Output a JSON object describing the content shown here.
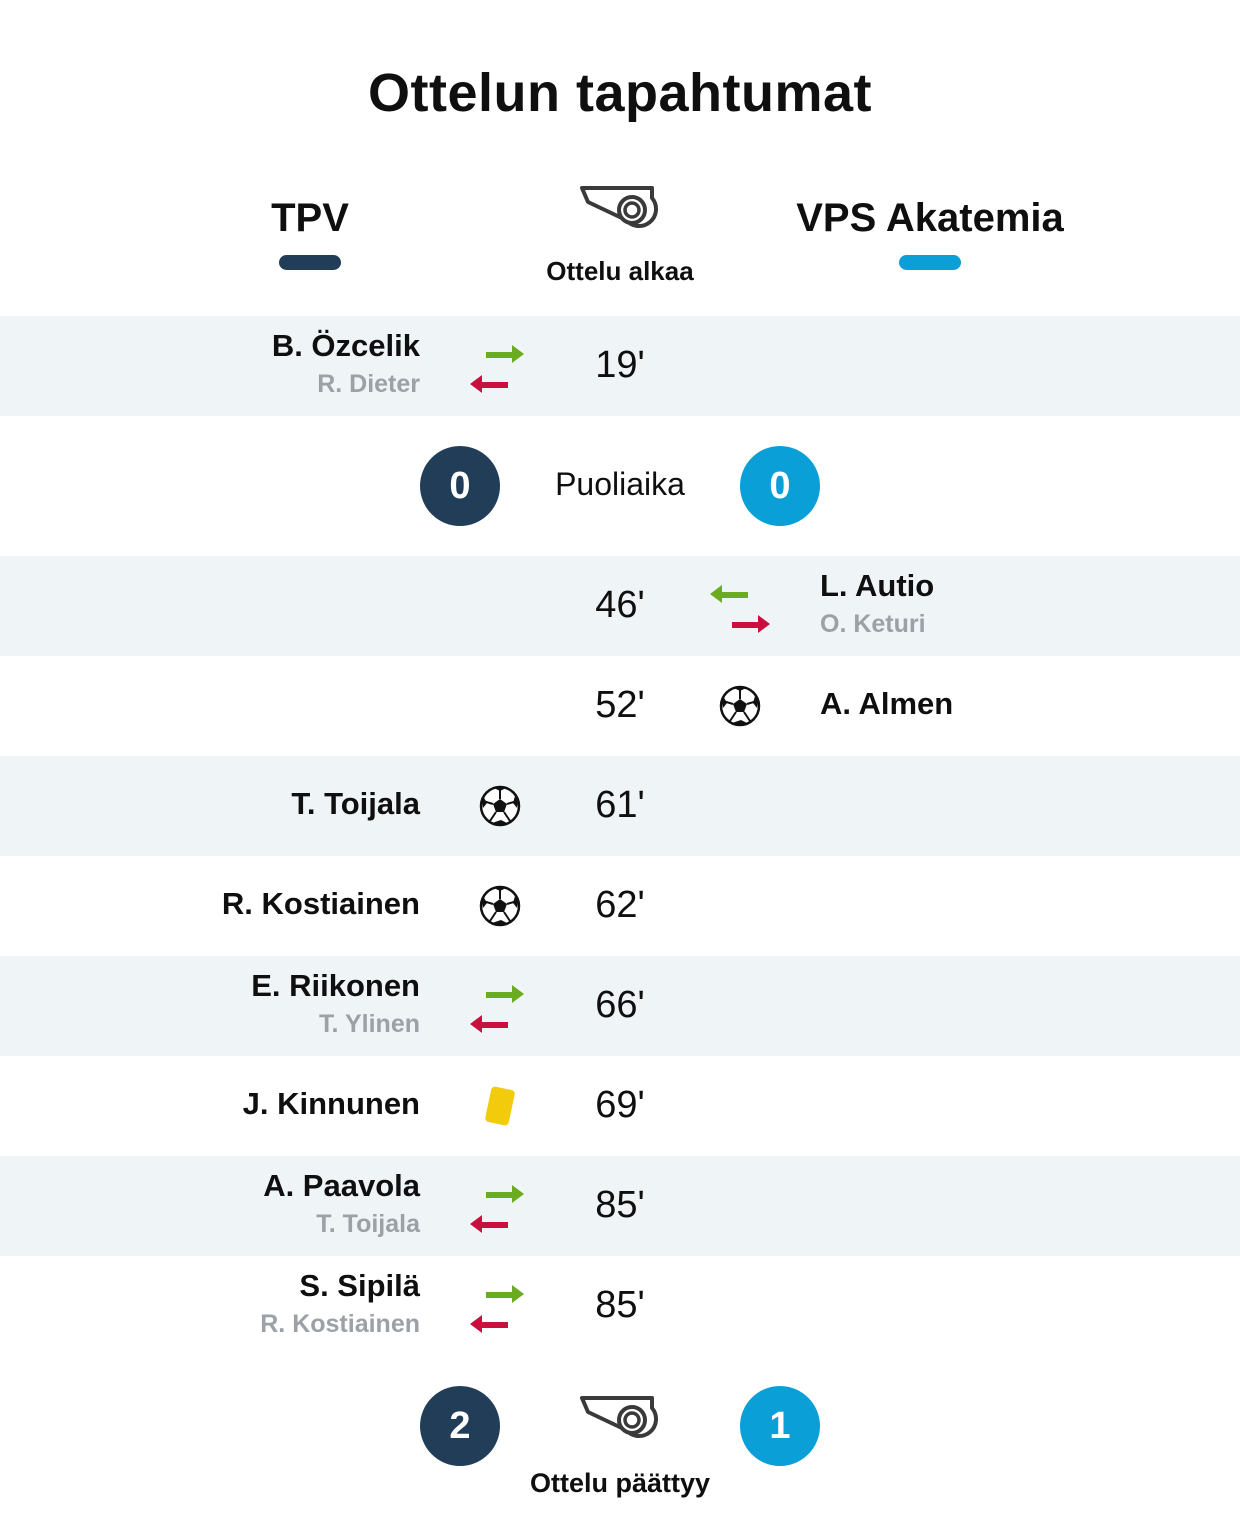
{
  "title": "Ottelun tapahtumat",
  "teams": {
    "home": {
      "name": "TPV",
      "color": "#213d58"
    },
    "away": {
      "name": "VPS Akatemia",
      "color": "#0b9fd8"
    }
  },
  "kickoff": {
    "label": "Ottelu alkaa",
    "icon": "whistle-icon"
  },
  "halftime": {
    "label": "Puoliaika",
    "home_score": "0",
    "away_score": "0"
  },
  "fulltime": {
    "label": "Ottelu päättyy",
    "home_score": "2",
    "away_score": "1",
    "icon": "whistle-icon"
  },
  "events": [
    {
      "minute": "19'",
      "side": "home",
      "type": "substitution",
      "player_in": "B. Özcelik",
      "player_out": "R. Dieter",
      "shaded": true
    },
    {
      "minute": "46'",
      "side": "away",
      "type": "substitution",
      "player_in": "L. Autio",
      "player_out": "O. Keturi",
      "shaded": true
    },
    {
      "minute": "52'",
      "side": "away",
      "type": "goal",
      "player": "A. Almen",
      "shaded": false
    },
    {
      "minute": "61'",
      "side": "home",
      "type": "goal",
      "player": "T. Toijala",
      "shaded": true
    },
    {
      "minute": "62'",
      "side": "home",
      "type": "goal",
      "player": "R. Kostiainen",
      "shaded": false
    },
    {
      "minute": "66'",
      "side": "home",
      "type": "substitution",
      "player_in": "E. Riikonen",
      "player_out": "T. Ylinen",
      "shaded": true
    },
    {
      "minute": "69'",
      "side": "home",
      "type": "yellow-card",
      "player": "J. Kinnunen",
      "shaded": false
    },
    {
      "minute": "85'",
      "side": "home",
      "type": "substitution",
      "player_in": "A. Paavola",
      "player_out": "T. Toijala",
      "shaded": true
    },
    {
      "minute": "85'",
      "side": "home",
      "type": "substitution",
      "player_in": "S. Sipilä",
      "player_out": "R. Kostiainen",
      "shaded": false
    }
  ],
  "colors": {
    "sub_in": "#6aab1f",
    "sub_out": "#c8103e",
    "yellow_card": "#f2cc0c",
    "row_shade": "#eff4f7",
    "sub_name": "#9ba1a6"
  }
}
